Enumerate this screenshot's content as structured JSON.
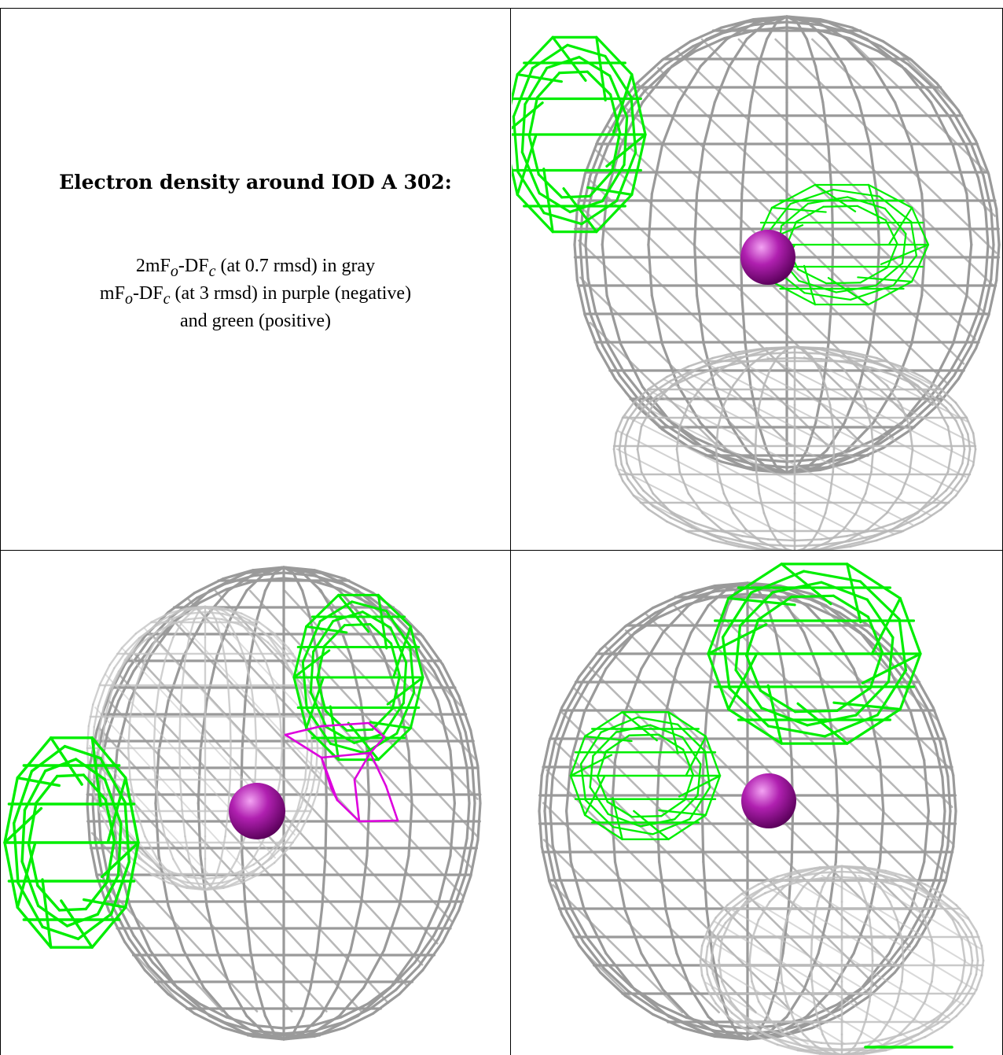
{
  "caption": {
    "title": "Electron density around IOD A 302:",
    "line1_pre": "2mF",
    "line1_sub1": "o",
    "line1_mid": "-DF",
    "line1_sub2": "c",
    "line1_post": " (at 0.7 rmsd) in gray",
    "line2_pre": "mF",
    "line2_sub1": "o",
    "line2_mid": "-DF",
    "line2_sub2": "c",
    "line2_post": " (at 3 rmsd) in purple (negative)",
    "line3": "and green (positive)"
  },
  "colors": {
    "map_2fofc": "#9a9a9a",
    "map_positive": "#00ee00",
    "map_negative": "#dd00dd",
    "atom": "#a010a0"
  },
  "panels": [
    {
      "name": "view-top-right",
      "negative_blob": false
    },
    {
      "name": "view-bottom-left",
      "negative_blob": true
    },
    {
      "name": "view-bottom-right",
      "negative_blob": false
    }
  ]
}
